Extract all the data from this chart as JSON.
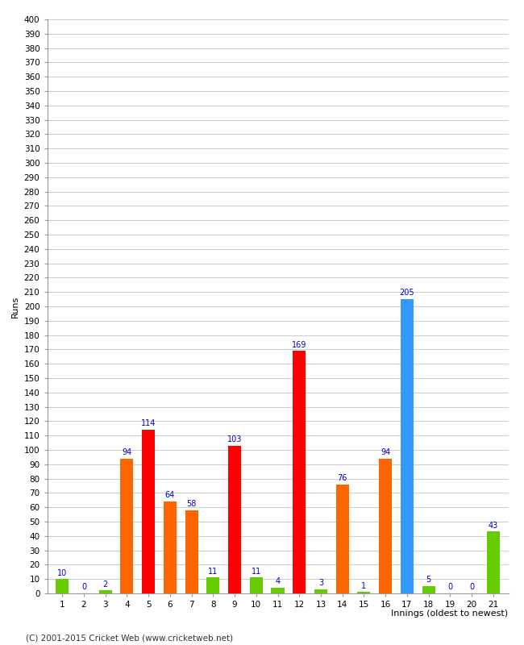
{
  "xlabel": "Innings (oldest to newest)",
  "ylabel": "Runs",
  "innings": [
    1,
    2,
    3,
    4,
    5,
    6,
    7,
    8,
    9,
    10,
    11,
    12,
    13,
    14,
    15,
    16,
    17,
    18,
    19,
    20,
    21
  ],
  "values": [
    10,
    0,
    2,
    94,
    114,
    64,
    58,
    11,
    103,
    11,
    4,
    169,
    3,
    76,
    1,
    94,
    205,
    5,
    0,
    0,
    43
  ],
  "colors": [
    "#66cc00",
    "#66cc00",
    "#66cc00",
    "#ff6600",
    "#ff0000",
    "#ff6600",
    "#ff6600",
    "#66cc00",
    "#ff0000",
    "#66cc00",
    "#66cc00",
    "#ff0000",
    "#66cc00",
    "#ff6600",
    "#66cc00",
    "#ff6600",
    "#3399ff",
    "#66cc00",
    "#66cc00",
    "#66cc00",
    "#66cc00"
  ],
  "ylim": [
    0,
    400
  ],
  "ytick_step": 10,
  "background_color": "#ffffff",
  "grid_color": "#cccccc",
  "label_color": "#0000cc",
  "footer": "(C) 2001-2015 Cricket Web (www.cricketweb.net)",
  "bar_width": 0.6,
  "tick_fontsize": 7.5,
  "label_fontsize": 8,
  "value_label_fontsize": 7,
  "footer_fontsize": 7.5
}
